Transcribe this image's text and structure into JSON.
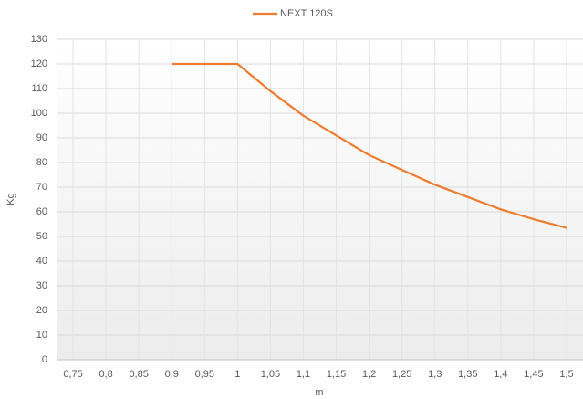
{
  "chart_data": {
    "type": "line",
    "x_label": "m",
    "y_label": "Kg",
    "x": [
      0.9,
      0.95,
      1,
      1.05,
      1.1,
      1.15,
      1.2,
      1.25,
      1.3,
      1.35,
      1.4,
      1.45,
      1.5
    ],
    "series": [
      {
        "name": "NEXT 120S",
        "color": "#ed7d31",
        "values": [
          120,
          120,
          120,
          109,
          99,
          91,
          83,
          77,
          71,
          66,
          61,
          57,
          53.5
        ]
      }
    ],
    "xlim": [
      0.725,
      1.525
    ],
    "xticks": [
      {
        "value": 0.75,
        "label": "0,75"
      },
      {
        "value": 0.8,
        "label": "0,8"
      },
      {
        "value": 0.85,
        "label": "0,85"
      },
      {
        "value": 0.9,
        "label": "0,9"
      },
      {
        "value": 0.95,
        "label": "0,95"
      },
      1,
      {
        "value": 1.05,
        "label": "1,05"
      },
      {
        "value": 1.1,
        "label": "1,1"
      },
      {
        "value": 1.15,
        "label": "1,15"
      },
      {
        "value": 1.2,
        "label": "1,2"
      },
      {
        "value": 1.25,
        "label": "1,25"
      },
      {
        "value": 1.3,
        "label": "1,3"
      },
      {
        "value": 1.35,
        "label": "1,35"
      },
      {
        "value": 1.4,
        "label": "1,4"
      },
      {
        "value": 1.45,
        "label": "1,45"
      },
      {
        "value": 1.5,
        "label": "1,5"
      }
    ],
    "ylim": [
      0,
      130
    ],
    "yticks": [
      0,
      10,
      20,
      30,
      40,
      50,
      60,
      70,
      80,
      90,
      100,
      110,
      120,
      130
    ],
    "grid": true,
    "legend": "top"
  }
}
